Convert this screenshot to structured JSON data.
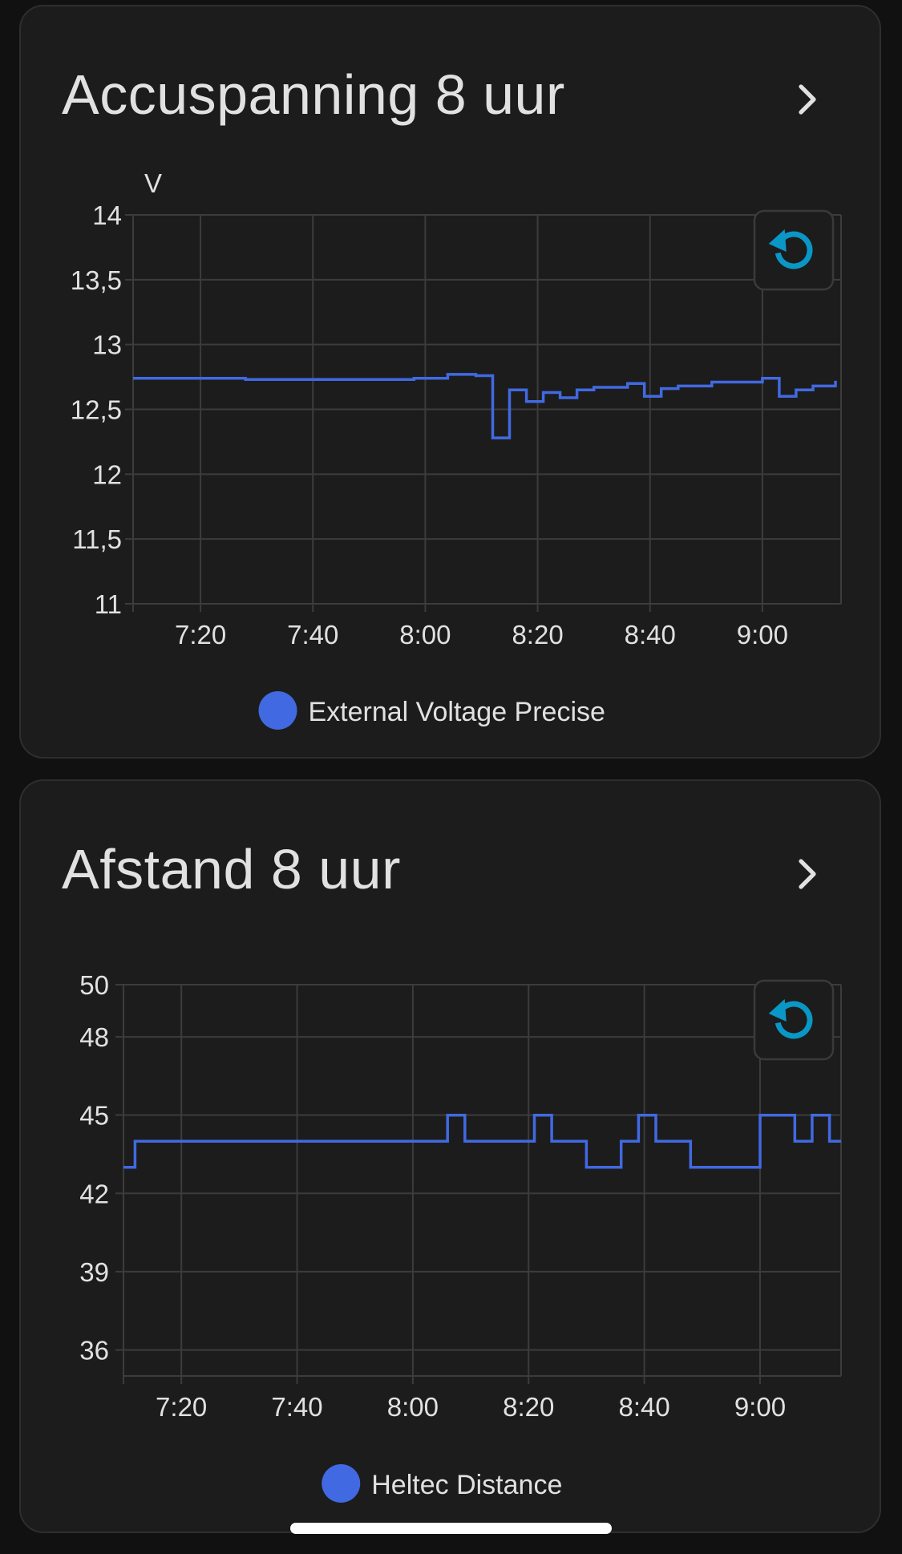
{
  "colors": {
    "background": "#111111",
    "card": "#1c1c1c",
    "series": "#4169e1",
    "reset_icon": "#0a97c6",
    "grid": "#3c3c3c"
  },
  "chart_data": [
    {
      "type": "line",
      "title": "Accuspanning 8 uur",
      "ylabel": "V",
      "xlabel": "",
      "x_tick_labels": [
        "7:20",
        "7:40",
        "8:00",
        "8:20",
        "8:40",
        "9:00"
      ],
      "x_tick_minutes": [
        440,
        460,
        480,
        500,
        520,
        540
      ],
      "xlim_minutes": [
        428,
        554
      ],
      "y_tick_labels": [
        "14",
        "13,5",
        "13",
        "12,5",
        "12",
        "11,5",
        "11"
      ],
      "y_tick_values": [
        14,
        13.5,
        13,
        12.5,
        12,
        11.5,
        11
      ],
      "ylim": [
        11,
        14
      ],
      "step": true,
      "legend_position": "bottom-center",
      "grid": true,
      "series": [
        {
          "name": "External Voltage Precise",
          "x": [
            "7:08",
            "7:24",
            "7:28",
            "7:30",
            "7:58",
            "8:04",
            "8:09",
            "8:12",
            "8:15",
            "8:18",
            "8:21",
            "8:24",
            "8:27",
            "8:30",
            "8:36",
            "8:39",
            "8:42",
            "8:45",
            "8:51",
            "9:00",
            "9:03",
            "9:06",
            "9:09",
            "9:13"
          ],
          "y": [
            12.74,
            12.74,
            12.73,
            12.73,
            12.74,
            12.77,
            12.76,
            12.28,
            12.65,
            12.56,
            12.63,
            12.59,
            12.65,
            12.67,
            12.7,
            12.6,
            12.66,
            12.68,
            12.71,
            12.74,
            12.6,
            12.65,
            12.68,
            12.72
          ]
        }
      ]
    },
    {
      "type": "line",
      "title": "Afstand 8 uur",
      "ylabel": "",
      "xlabel": "",
      "x_tick_labels": [
        "7:20",
        "7:40",
        "8:00",
        "8:20",
        "8:40",
        "9:00"
      ],
      "x_tick_minutes": [
        440,
        460,
        480,
        500,
        520,
        540
      ],
      "xlim_minutes": [
        430,
        554
      ],
      "y_tick_labels": [
        "50",
        "48",
        "45",
        "42",
        "39",
        "36"
      ],
      "y_tick_values": [
        50,
        48,
        45,
        42,
        39,
        36
      ],
      "ylim": [
        35,
        50
      ],
      "step": true,
      "legend_position": "bottom-center",
      "grid": true,
      "series": [
        {
          "name": "Heltec Distance",
          "x": [
            "7:10",
            "7:12",
            "8:06",
            "8:09",
            "8:21",
            "8:24",
            "8:30",
            "8:36",
            "8:39",
            "8:42",
            "8:48",
            "8:53",
            "9:00",
            "9:06",
            "9:09",
            "9:12",
            "9:14"
          ],
          "y": [
            43,
            44,
            45,
            44,
            45,
            44,
            43,
            44,
            45,
            44,
            43,
            43,
            45,
            44,
            45,
            44,
            44
          ]
        }
      ]
    }
  ]
}
